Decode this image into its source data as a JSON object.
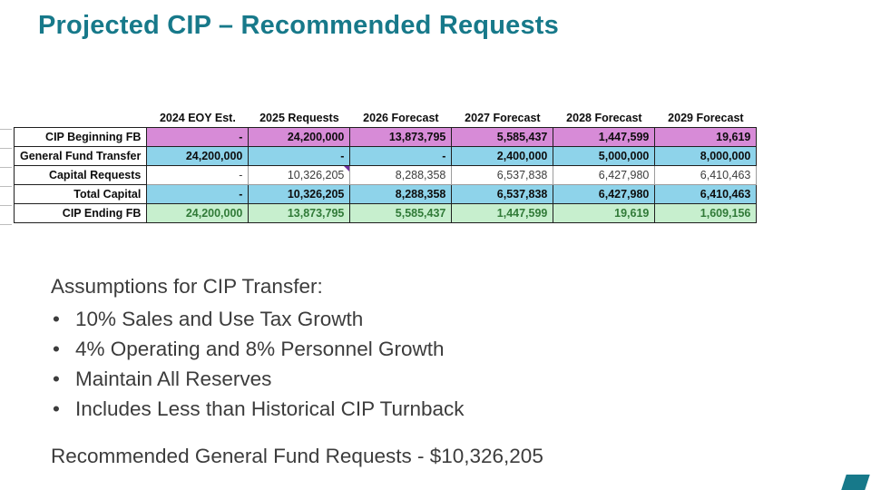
{
  "slide": {
    "title": "Projected CIP – Recommended Requests"
  },
  "table": {
    "columns": [
      "2024 EOY Est.",
      "2025 Requests",
      "2026 Forecast",
      "2027 Forecast",
      "2028 Forecast",
      "2029 Forecast"
    ],
    "rows": [
      {
        "label": "CIP Beginning FB",
        "style": "purple",
        "values": [
          "-",
          "24,200,000",
          "13,873,795",
          "5,585,437",
          "1,447,599",
          "19,619"
        ]
      },
      {
        "label": "General Fund Transfer",
        "style": "blue",
        "values": [
          "24,200,000",
          "-",
          "-",
          "2,400,000",
          "5,000,000",
          "8,000,000"
        ]
      },
      {
        "label": "Capital Requests",
        "style": "white",
        "values": [
          "-",
          "10,326,205",
          "8,288,358",
          "6,537,838",
          "6,427,980",
          "6,410,463"
        ]
      },
      {
        "label": "Total Capital",
        "style": "blue",
        "values": [
          "-",
          "10,326,205",
          "8,288,358",
          "6,537,838",
          "6,427,980",
          "6,410,463"
        ]
      },
      {
        "label": "CIP Ending FB",
        "style": "green",
        "values": [
          "24,200,000",
          "13,873,795",
          "5,585,437",
          "1,447,599",
          "19,619",
          "1,609,156"
        ]
      }
    ],
    "comment_marker": {
      "row": 2,
      "col": 1
    }
  },
  "assumptions": {
    "heading": "Assumptions for CIP Transfer:",
    "items": [
      "10% Sales and Use Tax Growth",
      "4% Operating and 8% Personnel Growth",
      "Maintain All Reserves",
      "Includes Less than Historical CIP Turnback"
    ]
  },
  "footer": {
    "recommendation": "Recommended General Fund Requests - $10,326,205"
  },
  "colors": {
    "title": "#17798a",
    "row_purple": "#d78bd7",
    "row_blue": "#8ed3ea",
    "row_green_bg": "#c7efce",
    "row_green_text": "#317a38",
    "comment_marker": "#7030a0"
  }
}
